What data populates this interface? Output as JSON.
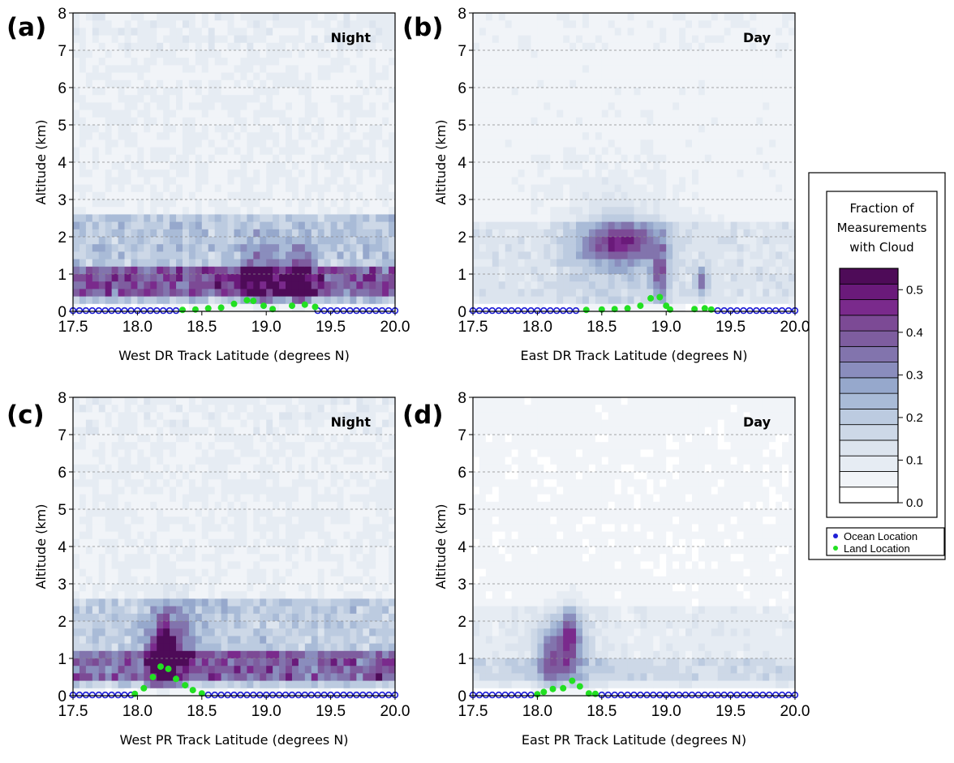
{
  "colors": {
    "ocean": "#1f1fd6",
    "land": "#22e022",
    "scale": [
      "#ffffff",
      "#f1f4f8",
      "#e6ecf3",
      "#dce4ee",
      "#cdd8e7",
      "#bccbe0",
      "#a9bbd7",
      "#96a8cc",
      "#8a8dbd",
      "#8274ad",
      "#7e5d9f",
      "#7c4a95",
      "#7a2a8c",
      "#6a1a7a",
      "#4e0b58"
    ]
  },
  "chart_data": [
    {
      "type": "heatmap",
      "panel": "(a)",
      "time": "Night",
      "xlabel": "West DR Track Latitude (degrees N)",
      "ylabel": "Altitude (km)",
      "xlim": [
        17.5,
        20.0
      ],
      "ylim": [
        0,
        8
      ],
      "xticks": [
        "17.5",
        "18.0",
        "18.5",
        "19.0",
        "19.5",
        "20.0"
      ],
      "yticks": [
        "0",
        "1",
        "2",
        "3",
        "4",
        "5",
        "6",
        "7",
        "8"
      ],
      "grid": true,
      "background": 0.06,
      "bands": [
        [
          0.2,
          2.6,
          0.14
        ],
        [
          0.3,
          1.2,
          0.2
        ]
      ],
      "blobs": [
        [
          19.27,
          0.85,
          0.08,
          0.8,
          0.34
        ],
        [
          19.0,
          0.9,
          0.16,
          1.0,
          0.2
        ],
        [
          18.85,
          0.8,
          0.08,
          0.6,
          0.12
        ]
      ],
      "land": [
        [
          18.35,
          0.04
        ],
        [
          18.45,
          0.05
        ],
        [
          18.55,
          0.08
        ],
        [
          18.65,
          0.1
        ],
        [
          18.75,
          0.2
        ],
        [
          18.85,
          0.3
        ],
        [
          18.9,
          0.28
        ],
        [
          18.98,
          0.15
        ],
        [
          19.05,
          0.06
        ],
        [
          19.2,
          0.15
        ],
        [
          19.3,
          0.18
        ],
        [
          19.38,
          0.12
        ]
      ],
      "ocean_gaps": [
        [
          18.33,
          19.4
        ]
      ]
    },
    {
      "type": "heatmap",
      "panel": "(b)",
      "time": "Day",
      "xlabel": "East DR Track Latitude (degrees N)",
      "ylabel": "Altitude (km)",
      "xlim": [
        17.5,
        20.0
      ],
      "ylim": [
        0,
        8
      ],
      "xticks": [
        "17.5",
        "18.0",
        "18.5",
        "19.0",
        "19.5",
        "20.0"
      ],
      "yticks": [
        "0",
        "1",
        "2",
        "3",
        "4",
        "5",
        "6",
        "7",
        "8"
      ],
      "grid": true,
      "background": 0.04,
      "bands": [
        [
          0.2,
          2.3,
          0.07
        ]
      ],
      "blobs": [
        [
          18.65,
          1.85,
          0.28,
          0.55,
          0.3
        ],
        [
          18.95,
          1.0,
          0.06,
          0.8,
          0.28
        ],
        [
          19.28,
          0.8,
          0.04,
          0.4,
          0.24
        ],
        [
          18.6,
          1.8,
          0.45,
          1.8,
          0.1
        ]
      ],
      "land": [
        [
          18.38,
          0.04
        ],
        [
          18.5,
          0.05
        ],
        [
          18.6,
          0.06
        ],
        [
          18.7,
          0.08
        ],
        [
          18.8,
          0.15
        ],
        [
          18.88,
          0.35
        ],
        [
          18.95,
          0.38
        ],
        [
          19.0,
          0.15
        ],
        [
          19.03,
          0.05
        ],
        [
          19.22,
          0.06
        ],
        [
          19.3,
          0.08
        ],
        [
          19.35,
          0.05
        ]
      ],
      "ocean_gaps": [
        [
          18.35,
          19.38
        ]
      ]
    },
    {
      "type": "heatmap",
      "panel": "(c)",
      "time": "Night",
      "xlabel": "West PR Track Latitude (degrees N)",
      "ylabel": "Altitude (km)",
      "xlim": [
        17.5,
        20.0
      ],
      "ylim": [
        0,
        8
      ],
      "xticks": [
        "17.5",
        "18.0",
        "18.5",
        "19.0",
        "19.5",
        "20.0"
      ],
      "yticks": [
        "0",
        "1",
        "2",
        "3",
        "4",
        "5",
        "6",
        "7",
        "8"
      ],
      "grid": true,
      "background": 0.06,
      "bands": [
        [
          0.2,
          2.6,
          0.13
        ],
        [
          0.3,
          1.1,
          0.2
        ]
      ],
      "blobs": [
        [
          18.2,
          1.1,
          0.1,
          0.85,
          0.42
        ],
        [
          18.3,
          1.5,
          0.2,
          1.0,
          0.15
        ]
      ],
      "land": [
        [
          17.98,
          0.05
        ],
        [
          18.05,
          0.2
        ],
        [
          18.12,
          0.5
        ],
        [
          18.18,
          0.78
        ],
        [
          18.24,
          0.72
        ],
        [
          18.3,
          0.45
        ],
        [
          18.37,
          0.28
        ],
        [
          18.43,
          0.15
        ],
        [
          18.5,
          0.06
        ]
      ],
      "ocean_gaps": [
        [
          17.96,
          18.52
        ]
      ]
    },
    {
      "type": "heatmap",
      "panel": "(d)",
      "time": "Day",
      "xlabel": "East PR Track Latitude (degrees N)",
      "ylabel": "Altitude (km)",
      "xlim": [
        17.5,
        20.0
      ],
      "ylim": [
        0,
        8
      ],
      "xticks": [
        "17.5",
        "18.0",
        "18.5",
        "19.0",
        "19.5",
        "20.0"
      ],
      "yticks": [
        "0",
        "1",
        "2",
        "3",
        "4",
        "5",
        "6",
        "7",
        "8"
      ],
      "grid": true,
      "background": 0.03,
      "bands": [
        [
          0.4,
          1.0,
          0.07
        ],
        [
          0.2,
          2.3,
          0.05
        ]
      ],
      "blobs": [
        [
          18.25,
          1.5,
          0.08,
          0.8,
          0.3
        ],
        [
          18.1,
          1.0,
          0.08,
          0.7,
          0.22
        ],
        [
          18.2,
          1.2,
          0.25,
          1.2,
          0.12
        ]
      ],
      "land": [
        [
          18.0,
          0.04
        ],
        [
          18.05,
          0.1
        ],
        [
          18.12,
          0.18
        ],
        [
          18.2,
          0.2
        ],
        [
          18.27,
          0.4
        ],
        [
          18.33,
          0.25
        ],
        [
          18.4,
          0.06
        ],
        [
          18.45,
          0.05
        ]
      ],
      "ocean_gaps": [
        [
          17.98,
          18.47
        ]
      ]
    }
  ],
  "legend": {
    "title": [
      "Fraction of",
      "Measurements",
      "with Cloud"
    ],
    "ticks": [
      {
        "label": "0.5",
        "value": 0.5
      },
      {
        "label": "0.4",
        "value": 0.4
      },
      {
        "label": "0.3",
        "value": 0.3
      },
      {
        "label": "0.2",
        "value": 0.2
      },
      {
        "label": "0.1",
        "value": 0.1
      },
      {
        "label": "0.0",
        "value": 0.0
      }
    ],
    "max": 0.55,
    "ocean_label": "Ocean Location",
    "land_label": "Land Location"
  }
}
